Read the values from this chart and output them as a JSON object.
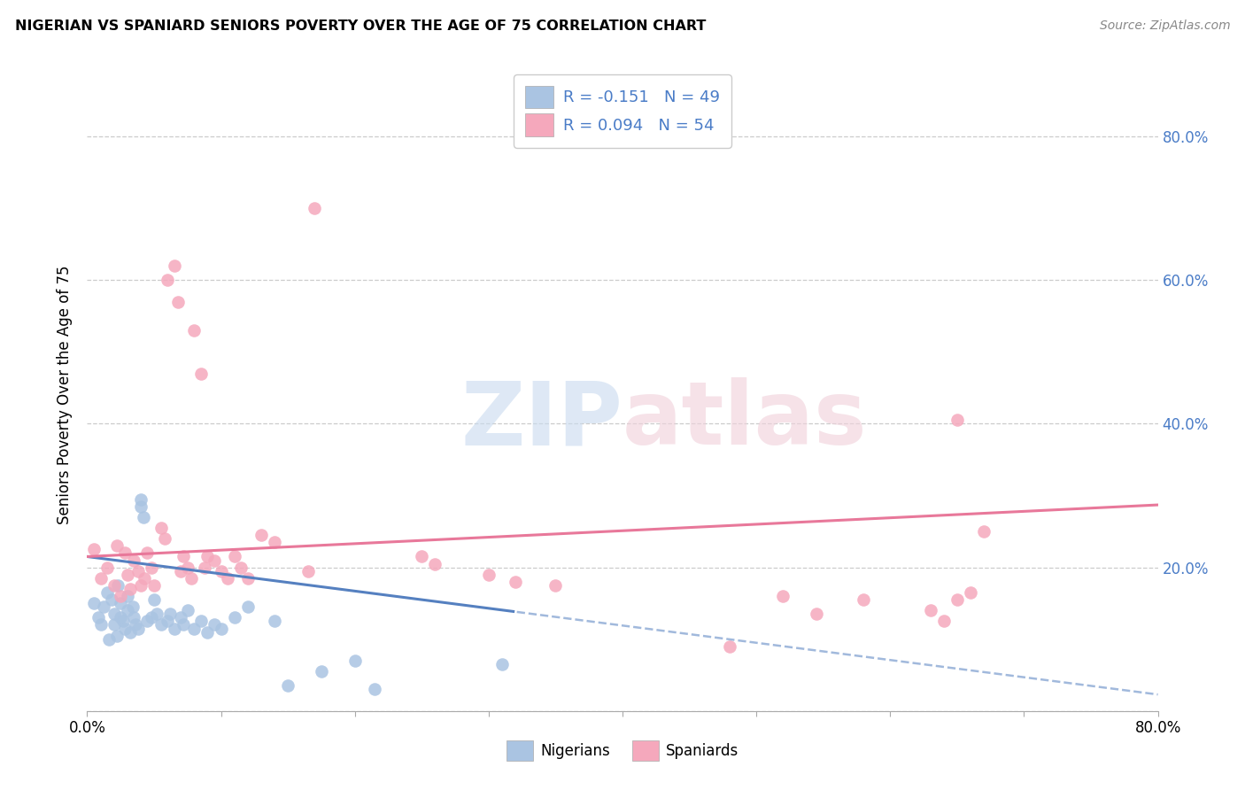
{
  "title": "NIGERIAN VS SPANIARD SENIORS POVERTY OVER THE AGE OF 75 CORRELATION CHART",
  "source": "Source: ZipAtlas.com",
  "ylabel": "Seniors Poverty Over the Age of 75",
  "xlim": [
    0.0,
    0.8
  ],
  "ylim": [
    0.0,
    0.88
  ],
  "yticks": [
    0.0,
    0.2,
    0.4,
    0.6,
    0.8
  ],
  "ytick_labels": [
    "",
    "20.0%",
    "40.0%",
    "60.0%",
    "80.0%"
  ],
  "xtick_vals": [
    0.0,
    0.1,
    0.2,
    0.3,
    0.4,
    0.5,
    0.6,
    0.7,
    0.8
  ],
  "xtick_labels": [
    "0.0%",
    "",
    "",
    "",
    "",
    "",
    "",
    "",
    "80.0%"
  ],
  "nigerian_R": -0.151,
  "nigerian_N": 49,
  "spaniard_R": 0.094,
  "spaniard_N": 54,
  "nigerian_color": "#aac4e2",
  "spaniard_color": "#f5a8bc",
  "nigerian_line_color": "#5580c0",
  "spaniard_line_color": "#e8789a",
  "background_color": "#ffffff",
  "grid_color": "#cccccc",
  "nigerian_x": [
    0.005,
    0.008,
    0.01,
    0.012,
    0.015,
    0.016,
    0.018,
    0.02,
    0.02,
    0.022,
    0.023,
    0.025,
    0.025,
    0.027,
    0.028,
    0.03,
    0.03,
    0.032,
    0.034,
    0.035,
    0.036,
    0.038,
    0.04,
    0.04,
    0.042,
    0.045,
    0.048,
    0.05,
    0.052,
    0.055,
    0.06,
    0.062,
    0.065,
    0.07,
    0.072,
    0.075,
    0.08,
    0.085,
    0.09,
    0.095,
    0.1,
    0.11,
    0.12,
    0.14,
    0.15,
    0.175,
    0.2,
    0.215,
    0.31
  ],
  "nigerian_y": [
    0.15,
    0.13,
    0.12,
    0.145,
    0.165,
    0.1,
    0.155,
    0.12,
    0.135,
    0.105,
    0.175,
    0.13,
    0.15,
    0.125,
    0.115,
    0.14,
    0.16,
    0.11,
    0.145,
    0.13,
    0.12,
    0.115,
    0.285,
    0.295,
    0.27,
    0.125,
    0.13,
    0.155,
    0.135,
    0.12,
    0.125,
    0.135,
    0.115,
    0.13,
    0.12,
    0.14,
    0.115,
    0.125,
    0.11,
    0.12,
    0.115,
    0.13,
    0.145,
    0.125,
    0.035,
    0.055,
    0.07,
    0.03,
    0.065
  ],
  "spaniard_x": [
    0.005,
    0.01,
    0.015,
    0.02,
    0.022,
    0.025,
    0.028,
    0.03,
    0.032,
    0.035,
    0.038,
    0.04,
    0.043,
    0.045,
    0.048,
    0.05,
    0.055,
    0.058,
    0.06,
    0.065,
    0.068,
    0.07,
    0.072,
    0.075,
    0.078,
    0.08,
    0.085,
    0.088,
    0.09,
    0.095,
    0.1,
    0.105,
    0.11,
    0.115,
    0.12,
    0.13,
    0.14,
    0.165,
    0.17,
    0.25,
    0.26,
    0.3,
    0.32,
    0.35,
    0.48,
    0.52,
    0.545,
    0.58,
    0.63,
    0.64,
    0.65,
    0.66,
    0.67,
    0.65
  ],
  "spaniard_y": [
    0.225,
    0.185,
    0.2,
    0.175,
    0.23,
    0.16,
    0.22,
    0.19,
    0.17,
    0.21,
    0.195,
    0.175,
    0.185,
    0.22,
    0.2,
    0.175,
    0.255,
    0.24,
    0.6,
    0.62,
    0.57,
    0.195,
    0.215,
    0.2,
    0.185,
    0.53,
    0.47,
    0.2,
    0.215,
    0.21,
    0.195,
    0.185,
    0.215,
    0.2,
    0.185,
    0.245,
    0.235,
    0.195,
    0.7,
    0.215,
    0.205,
    0.19,
    0.18,
    0.175,
    0.09,
    0.16,
    0.135,
    0.155,
    0.14,
    0.125,
    0.155,
    0.165,
    0.25,
    0.405
  ]
}
